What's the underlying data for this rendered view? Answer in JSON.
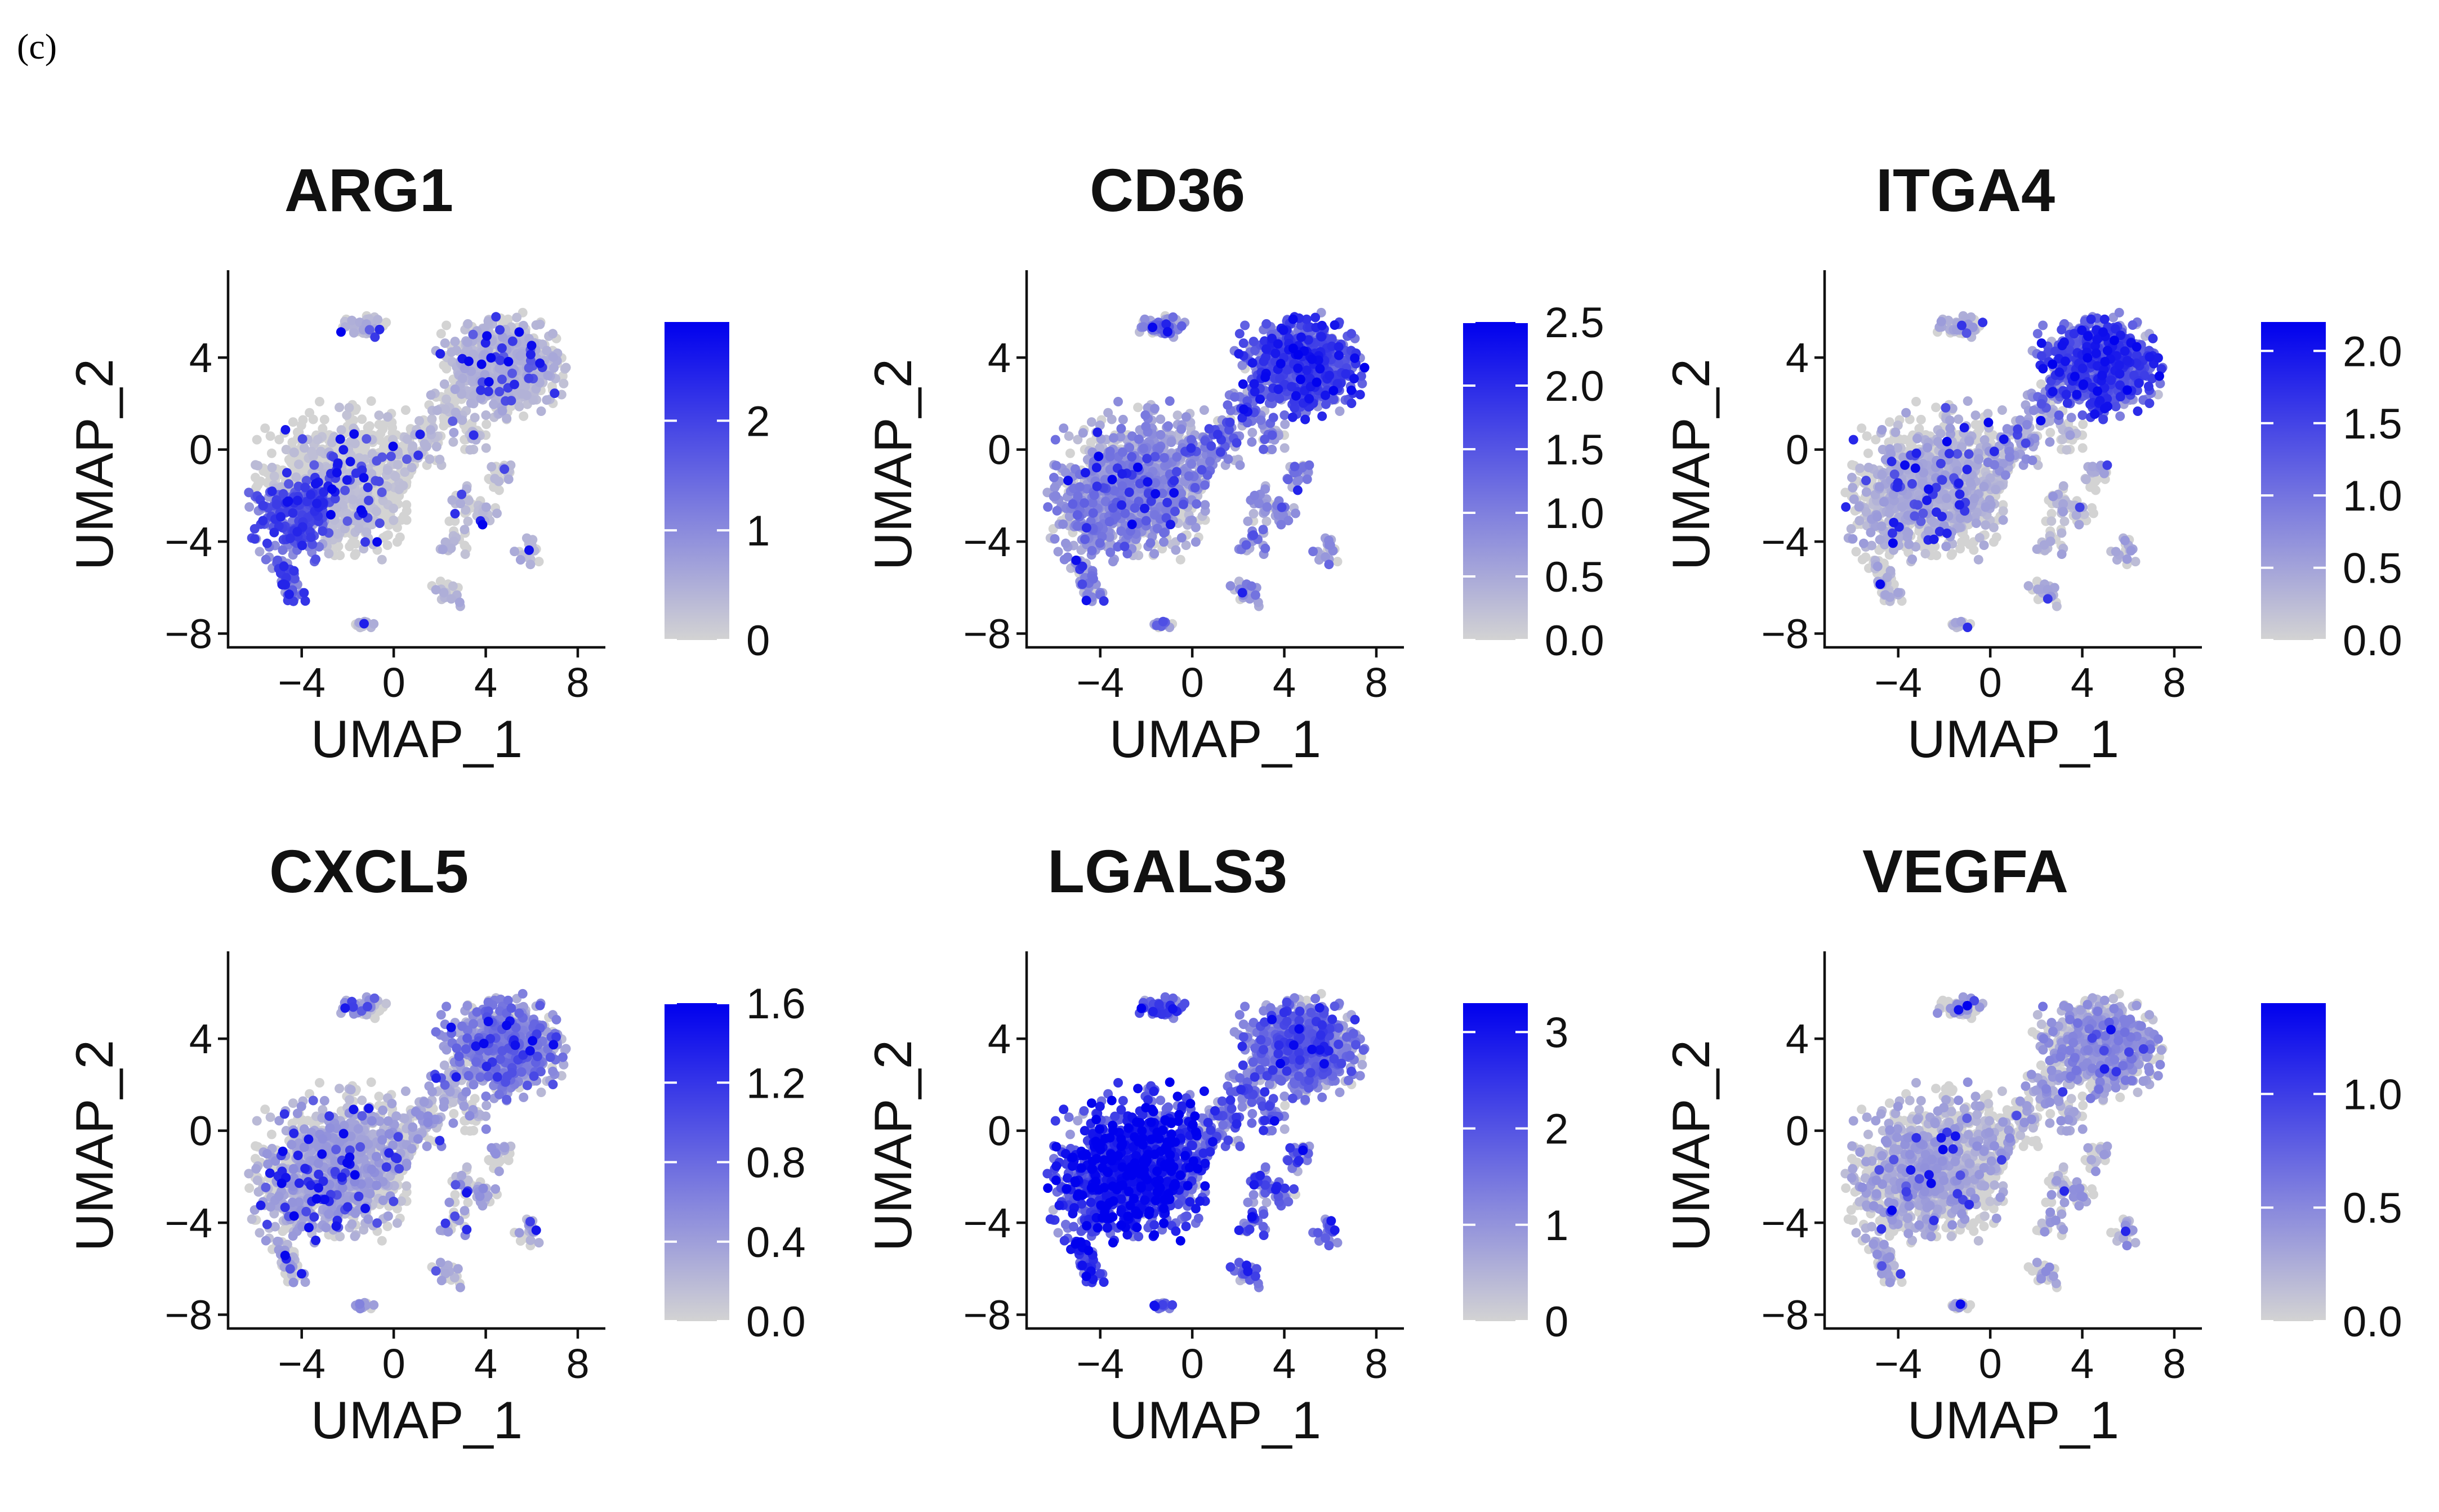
{
  "panel_label": "(c)",
  "colors": {
    "low": "#d3d3d3",
    "high": "#0000ee",
    "axis": "#111111",
    "text": "#111111"
  },
  "chart_data": [
    {
      "type": "scatter",
      "title": "ARG1",
      "xlabel": "UMAP_1",
      "ylabel": "UMAP_2",
      "xlim": [
        -7.2,
        9.2
      ],
      "ylim": [
        -8.6,
        7.8
      ],
      "xticks": [
        -4,
        0,
        4,
        8
      ],
      "xtick_labels": [
        "−4",
        "0",
        "4",
        "8"
      ],
      "yticks": [
        -8,
        -4,
        0,
        4
      ],
      "ytick_labels": [
        "−8",
        "−4",
        "0",
        "4"
      ],
      "legend": {
        "min": 0,
        "max": 2.9,
        "ticks": [
          0,
          1,
          2
        ],
        "tick_labels": [
          "0",
          "1",
          "2"
        ]
      },
      "expression": {
        "cluster_a": 0.1,
        "cluster_a_sw": 1.6,
        "cluster_b": 0.2,
        "cluster_c": 0.3,
        "islands": 0.3,
        "spread": 0.25,
        "hotspot_rate": 0.05
      }
    },
    {
      "type": "scatter",
      "title": "CD36",
      "xlabel": "UMAP_1",
      "ylabel": "UMAP_2",
      "xlim": [
        -7.2,
        9.2
      ],
      "ylim": [
        -8.6,
        7.8
      ],
      "xticks": [
        -4,
        0,
        4,
        8
      ],
      "xtick_labels": [
        "−4",
        "0",
        "4",
        "8"
      ],
      "yticks": [
        -8,
        -4,
        0,
        4
      ],
      "ytick_labels": [
        "−8",
        "−4",
        "0",
        "4"
      ],
      "legend": {
        "min": 0,
        "max": 2.5,
        "ticks": [
          0,
          0.5,
          1.0,
          1.5,
          2.0,
          2.5
        ],
        "tick_labels": [
          "0.0",
          "0.5",
          "1.0",
          "1.5",
          "2.0",
          "2.5"
        ]
      },
      "expression": {
        "cluster_a": 0.5,
        "cluster_a_sw": 0.6,
        "cluster_b": 1.0,
        "cluster_c": 1.4,
        "islands": 0.7,
        "spread": 0.6,
        "hotspot_rate": 0.04
      }
    },
    {
      "type": "scatter",
      "title": "ITGA4",
      "xlabel": "UMAP_1",
      "ylabel": "UMAP_2",
      "xlim": [
        -7.2,
        9.2
      ],
      "ylim": [
        -8.6,
        7.8
      ],
      "xticks": [
        -4,
        0,
        4,
        8
      ],
      "xtick_labels": [
        "−4",
        "0",
        "4",
        "8"
      ],
      "yticks": [
        -8,
        -4,
        0,
        4
      ],
      "ytick_labels": [
        "−8",
        "−4",
        "0",
        "4"
      ],
      "legend": {
        "min": 0,
        "max": 2.2,
        "ticks": [
          0,
          0.5,
          1.0,
          1.5,
          2.0
        ],
        "tick_labels": [
          "0.0",
          "0.5",
          "1.0",
          "1.5",
          "2.0"
        ]
      },
      "expression": {
        "cluster_a": 0.15,
        "cluster_a_sw": 0.15,
        "cluster_b": 0.4,
        "cluster_c": 1.3,
        "islands": 0.2,
        "spread": 0.4,
        "hotspot_rate": 0.04
      }
    },
    {
      "type": "scatter",
      "title": "CXCL5",
      "xlabel": "UMAP_1",
      "ylabel": "UMAP_2",
      "xlim": [
        -7.2,
        9.2
      ],
      "ylim": [
        -8.6,
        7.8
      ],
      "xticks": [
        -4,
        0,
        4,
        8
      ],
      "xtick_labels": [
        "−4",
        "0",
        "4",
        "8"
      ],
      "yticks": [
        -8,
        -4,
        0,
        4
      ],
      "ytick_labels": [
        "−8",
        "−4",
        "0",
        "4"
      ],
      "legend": {
        "min": 0,
        "max": 1.6,
        "ticks": [
          0,
          0.4,
          0.8,
          1.2,
          1.6
        ],
        "tick_labels": [
          "0.0",
          "0.4",
          "0.8",
          "1.2",
          "1.6"
        ]
      },
      "expression": {
        "cluster_a": 0.15,
        "cluster_a_sw": 0.15,
        "cluster_b": 0.2,
        "cluster_c": 0.45,
        "islands": 0.2,
        "spread": 0.35,
        "hotspot_rate": 0.05
      }
    },
    {
      "type": "scatter",
      "title": "LGALS3",
      "xlabel": "UMAP_1",
      "ylabel": "UMAP_2",
      "xlim": [
        -7.2,
        9.2
      ],
      "ylim": [
        -8.6,
        7.8
      ],
      "xticks": [
        -4,
        0,
        4,
        8
      ],
      "xtick_labels": [
        "−4",
        "0",
        "4",
        "8"
      ],
      "yticks": [
        -8,
        -4,
        0,
        4
      ],
      "ytick_labels": [
        "−8",
        "−4",
        "0",
        "4"
      ],
      "legend": {
        "min": 0,
        "max": 3.3,
        "ticks": [
          0,
          1,
          2,
          3
        ],
        "tick_labels": [
          "0",
          "1",
          "2",
          "3"
        ]
      },
      "expression": {
        "cluster_a": 2.4,
        "cluster_a_sw": 2.4,
        "cluster_b": 1.6,
        "cluster_c": 1.3,
        "islands": 1.8,
        "spread": 0.8,
        "hotspot_rate": 0.03
      }
    },
    {
      "type": "scatter",
      "title": "VEGFA",
      "xlabel": "UMAP_1",
      "ylabel": "UMAP_2",
      "xlim": [
        -7.2,
        9.2
      ],
      "ylim": [
        -8.6,
        7.8
      ],
      "xticks": [
        -4,
        0,
        4,
        8
      ],
      "xtick_labels": [
        "−4",
        "0",
        "4",
        "8"
      ],
      "yticks": [
        -8,
        -4,
        0,
        4
      ],
      "ytick_labels": [
        "−8",
        "−4",
        "0",
        "4"
      ],
      "legend": {
        "min": 0,
        "max": 1.4,
        "ticks": [
          0,
          0.5,
          1.0
        ],
        "tick_labels": [
          "0.0",
          "0.5",
          "1.0"
        ]
      },
      "expression": {
        "cluster_a": 0.05,
        "cluster_a_sw": 0.05,
        "cluster_b": 0.1,
        "cluster_c": 0.2,
        "islands": 0.1,
        "spread": 0.4,
        "hotspot_rate": 0.02
      }
    }
  ]
}
